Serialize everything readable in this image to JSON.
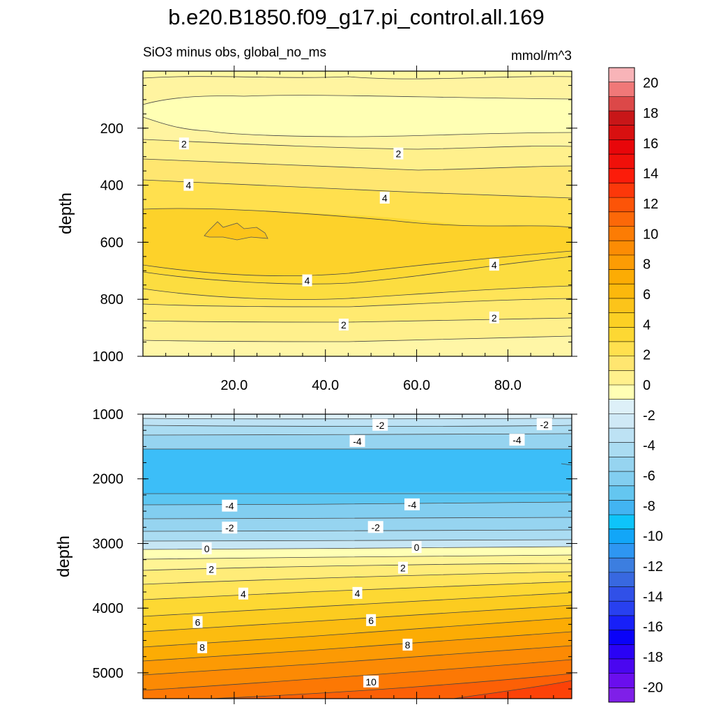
{
  "title": "b.e20.B1850.f09_g17.pi_control.all.169",
  "subtitle_left": "SiO3 minus obs, global_no_ms",
  "subtitle_right": "mmol/m^3",
  "chart_data": [
    {
      "type": "contour",
      "panel": "upper",
      "ylabel": "depth",
      "xlim": [
        0,
        94
      ],
      "ylim": [
        1000,
        0
      ],
      "xticks": [
        "20.0",
        "40.0",
        "60.0",
        "80.0"
      ],
      "yticks": [
        "200",
        "400",
        "600",
        "800",
        "1000"
      ],
      "contour_levels_shown": [
        0,
        1,
        2,
        3,
        4,
        5
      ],
      "contour_labels": [
        {
          "x": 9,
          "y": 255,
          "text": "2"
        },
        {
          "x": 56,
          "y": 290,
          "text": "2"
        },
        {
          "x": 10,
          "y": 400,
          "text": "4"
        },
        {
          "x": 53,
          "y": 445,
          "text": "4"
        },
        {
          "x": 36,
          "y": 735,
          "text": "4"
        },
        {
          "x": 77,
          "y": 680,
          "text": "4"
        },
        {
          "x": 44,
          "y": 890,
          "text": "2"
        },
        {
          "x": 77,
          "y": 865,
          "text": "2"
        }
      ]
    },
    {
      "type": "contour",
      "panel": "lower",
      "ylabel": "depth",
      "xlim": [
        0,
        94
      ],
      "ylim": [
        5400,
        1000
      ],
      "yticks": [
        "1000",
        "2000",
        "3000",
        "4000",
        "5000"
      ],
      "contour_levels_shown": [
        -6,
        -5,
        -4,
        -3,
        -2,
        -1,
        0,
        1,
        2,
        3,
        4,
        5,
        6,
        7,
        8,
        9,
        10,
        11
      ],
      "contour_labels": [
        {
          "x": 52,
          "y": 1170,
          "text": "-2"
        },
        {
          "x": 88,
          "y": 1160,
          "text": "-2"
        },
        {
          "x": 47,
          "y": 1420,
          "text": "-4"
        },
        {
          "x": 82,
          "y": 1400,
          "text": "-4"
        },
        {
          "x": 19,
          "y": 2420,
          "text": "-4"
        },
        {
          "x": 59,
          "y": 2400,
          "text": "-4"
        },
        {
          "x": 19,
          "y": 2760,
          "text": "-2"
        },
        {
          "x": 51,
          "y": 2750,
          "text": "-2"
        },
        {
          "x": 14,
          "y": 3080,
          "text": "0"
        },
        {
          "x": 60,
          "y": 3060,
          "text": "0"
        },
        {
          "x": 15,
          "y": 3400,
          "text": "2"
        },
        {
          "x": 57,
          "y": 3380,
          "text": "2"
        },
        {
          "x": 22,
          "y": 3780,
          "text": "4"
        },
        {
          "x": 47,
          "y": 3770,
          "text": "4"
        },
        {
          "x": 12,
          "y": 4220,
          "text": "6"
        },
        {
          "x": 50,
          "y": 4190,
          "text": "6"
        },
        {
          "x": 13,
          "y": 4610,
          "text": "8"
        },
        {
          "x": 58,
          "y": 4570,
          "text": "8"
        },
        {
          "x": 50,
          "y": 5140,
          "text": "10"
        }
      ]
    }
  ],
  "colorbar": {
    "unit_min": -21,
    "unit_max": 21,
    "step": 1,
    "labels": [
      "20",
      "18",
      "16",
      "14",
      "12",
      "10",
      "8",
      "6",
      "4",
      "2",
      "0",
      "-2",
      "-4",
      "-6",
      "-8",
      "-10",
      "-12",
      "-14",
      "-16",
      "-18",
      "-20"
    ],
    "colors": [
      "#7f1fe8",
      "#6a0eee",
      "#4a06f0",
      "#2a02f5",
      "#0a02f8",
      "#1820f8",
      "#2840f0",
      "#3050e8",
      "#3868e0",
      "#3c7ee0",
      "#2e96f2",
      "#12a6f8",
      "#0ec4fa",
      "#42b4f2",
      "#64c6f0",
      "#82cef0",
      "#96d4f0",
      "#aadcf2",
      "#bde2f4",
      "#cfe9f6",
      "#ddf0f8",
      "#ffffb4",
      "#fff08c",
      "#ffe670",
      "#ffe04e",
      "#fdd833",
      "#fcd024",
      "#fcc41a",
      "#fcb80c",
      "#fcac04",
      "#fc9c04",
      "#fc8c04",
      "#fc7c04",
      "#fc6808",
      "#fc5408",
      "#fc380a",
      "#fc1c0a",
      "#f0100a",
      "#e8060a",
      "#d81010",
      "#c81618",
      "#dc4848",
      "#f07878",
      "#f8b4b8"
    ]
  }
}
